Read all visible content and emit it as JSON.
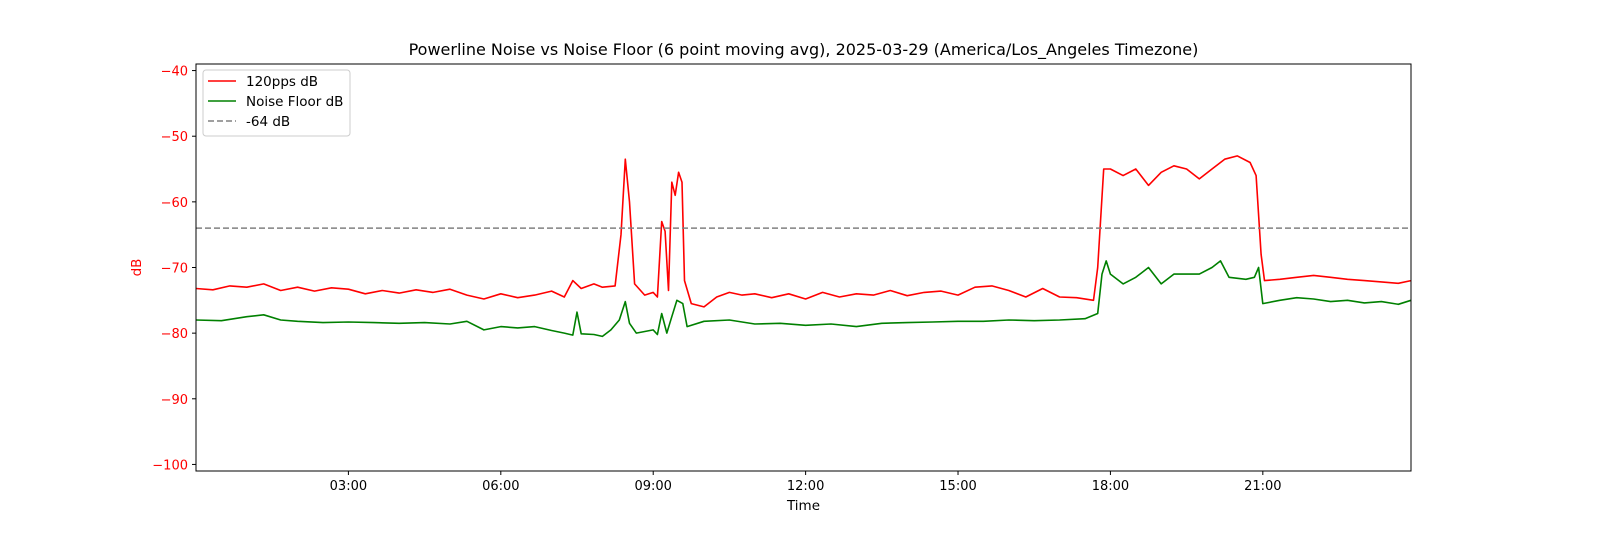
{
  "chart_data": {
    "type": "line",
    "title": "Powerline Noise vs Noise Floor (6 point moving avg), 2025-03-29 (America/Los_Angeles Timezone)",
    "xlabel": "Time",
    "ylabel": "dB",
    "xlim": [
      "00:00",
      "23:55"
    ],
    "ylim": [
      -101,
      -39
    ],
    "x_ticks": [
      "03:00",
      "06:00",
      "09:00",
      "12:00",
      "15:00",
      "18:00",
      "21:00"
    ],
    "y_ticks": [
      -40,
      -50,
      -60,
      -70,
      -80,
      -90,
      -100
    ],
    "grid": false,
    "legend_position": "top-left",
    "ylabel_color": "#ff0000",
    "ytick_color": "#ff0000",
    "series": [
      {
        "name": "120pps dB",
        "color": "#ff0000",
        "style": "solid",
        "points": [
          [
            "00:00",
            -73.2
          ],
          [
            "00:20",
            -73.4
          ],
          [
            "00:40",
            -72.8
          ],
          [
            "01:00",
            -73.0
          ],
          [
            "01:20",
            -72.5
          ],
          [
            "01:40",
            -73.5
          ],
          [
            "02:00",
            -73.0
          ],
          [
            "02:20",
            -73.6
          ],
          [
            "02:40",
            -73.1
          ],
          [
            "03:00",
            -73.3
          ],
          [
            "03:20",
            -74.0
          ],
          [
            "03:40",
            -73.5
          ],
          [
            "04:00",
            -73.9
          ],
          [
            "04:20",
            -73.4
          ],
          [
            "04:40",
            -73.8
          ],
          [
            "05:00",
            -73.3
          ],
          [
            "05:20",
            -74.2
          ],
          [
            "05:40",
            -74.8
          ],
          [
            "06:00",
            -74.0
          ],
          [
            "06:20",
            -74.6
          ],
          [
            "06:40",
            -74.2
          ],
          [
            "07:00",
            -73.6
          ],
          [
            "07:15",
            -74.5
          ],
          [
            "07:25",
            -72.0
          ],
          [
            "07:35",
            -73.2
          ],
          [
            "07:50",
            -72.5
          ],
          [
            "08:00",
            -73.0
          ],
          [
            "08:15",
            -72.8
          ],
          [
            "08:22",
            -65.0
          ],
          [
            "08:27",
            -53.5
          ],
          [
            "08:32",
            -60.0
          ],
          [
            "08:38",
            -72.5
          ],
          [
            "08:50",
            -74.2
          ],
          [
            "09:00",
            -73.8
          ],
          [
            "09:05",
            -74.5
          ],
          [
            "09:10",
            -63.0
          ],
          [
            "09:14",
            -64.5
          ],
          [
            "09:18",
            -73.5
          ],
          [
            "09:22",
            -57.0
          ],
          [
            "09:26",
            -59.0
          ],
          [
            "09:30",
            -55.5
          ],
          [
            "09:34",
            -57.0
          ],
          [
            "09:37",
            -72.0
          ],
          [
            "09:45",
            -75.5
          ],
          [
            "10:00",
            -76.0
          ],
          [
            "10:15",
            -74.5
          ],
          [
            "10:30",
            -73.8
          ],
          [
            "10:45",
            -74.2
          ],
          [
            "11:00",
            -74.0
          ],
          [
            "11:20",
            -74.6
          ],
          [
            "11:40",
            -74.0
          ],
          [
            "12:00",
            -74.8
          ],
          [
            "12:20",
            -73.8
          ],
          [
            "12:40",
            -74.5
          ],
          [
            "13:00",
            -74.0
          ],
          [
            "13:20",
            -74.2
          ],
          [
            "13:40",
            -73.5
          ],
          [
            "14:00",
            -74.3
          ],
          [
            "14:20",
            -73.8
          ],
          [
            "14:40",
            -73.6
          ],
          [
            "15:00",
            -74.2
          ],
          [
            "15:20",
            -73.0
          ],
          [
            "15:40",
            -72.8
          ],
          [
            "16:00",
            -73.5
          ],
          [
            "16:20",
            -74.5
          ],
          [
            "16:40",
            -73.2
          ],
          [
            "17:00",
            -74.5
          ],
          [
            "17:20",
            -74.6
          ],
          [
            "17:40",
            -75.0
          ],
          [
            "17:45",
            -70.0
          ],
          [
            "17:52",
            -55.0
          ],
          [
            "18:00",
            -55.0
          ],
          [
            "18:15",
            -56.0
          ],
          [
            "18:30",
            -55.0
          ],
          [
            "18:45",
            -57.5
          ],
          [
            "19:00",
            -55.5
          ],
          [
            "19:15",
            -54.5
          ],
          [
            "19:30",
            -55.0
          ],
          [
            "19:45",
            -56.5
          ],
          [
            "20:00",
            -55.0
          ],
          [
            "20:15",
            -53.5
          ],
          [
            "20:30",
            -53.0
          ],
          [
            "20:45",
            -54.0
          ],
          [
            "20:52",
            -56.0
          ],
          [
            "20:58",
            -68.0
          ],
          [
            "21:02",
            -72.0
          ],
          [
            "21:20",
            -71.8
          ],
          [
            "21:40",
            -71.5
          ],
          [
            "22:00",
            -71.2
          ],
          [
            "22:20",
            -71.5
          ],
          [
            "22:40",
            -71.8
          ],
          [
            "23:00",
            -72.0
          ],
          [
            "23:20",
            -72.2
          ],
          [
            "23:40",
            -72.4
          ],
          [
            "23:55",
            -72.0
          ]
        ]
      },
      {
        "name": "Noise Floor dB",
        "color": "#008000",
        "style": "solid",
        "points": [
          [
            "00:00",
            -78.0
          ],
          [
            "00:30",
            -78.1
          ],
          [
            "01:00",
            -77.5
          ],
          [
            "01:20",
            -77.2
          ],
          [
            "01:40",
            -78.0
          ],
          [
            "02:00",
            -78.2
          ],
          [
            "02:30",
            -78.4
          ],
          [
            "03:00",
            -78.3
          ],
          [
            "03:30",
            -78.4
          ],
          [
            "04:00",
            -78.5
          ],
          [
            "04:30",
            -78.4
          ],
          [
            "05:00",
            -78.6
          ],
          [
            "05:20",
            -78.2
          ],
          [
            "05:40",
            -79.5
          ],
          [
            "06:00",
            -79.0
          ],
          [
            "06:20",
            -79.2
          ],
          [
            "06:40",
            -79.0
          ],
          [
            "07:00",
            -79.6
          ],
          [
            "07:15",
            -80.0
          ],
          [
            "07:25",
            -80.3
          ],
          [
            "07:30",
            -76.8
          ],
          [
            "07:35",
            -80.1
          ],
          [
            "07:50",
            -80.2
          ],
          [
            "08:00",
            -80.5
          ],
          [
            "08:10",
            -79.5
          ],
          [
            "08:20",
            -78.0
          ],
          [
            "08:27",
            -75.2
          ],
          [
            "08:32",
            -78.5
          ],
          [
            "08:40",
            -80.0
          ],
          [
            "09:00",
            -79.5
          ],
          [
            "09:05",
            -80.2
          ],
          [
            "09:10",
            -77.0
          ],
          [
            "09:16",
            -80.0
          ],
          [
            "09:22",
            -77.5
          ],
          [
            "09:28",
            -75.0
          ],
          [
            "09:35",
            -75.5
          ],
          [
            "09:40",
            -79.0
          ],
          [
            "10:00",
            -78.2
          ],
          [
            "10:30",
            -78.0
          ],
          [
            "11:00",
            -78.6
          ],
          [
            "11:30",
            -78.5
          ],
          [
            "12:00",
            -78.8
          ],
          [
            "12:30",
            -78.6
          ],
          [
            "13:00",
            -79.0
          ],
          [
            "13:30",
            -78.5
          ],
          [
            "14:00",
            -78.4
          ],
          [
            "14:30",
            -78.3
          ],
          [
            "15:00",
            -78.2
          ],
          [
            "15:30",
            -78.2
          ],
          [
            "16:00",
            -78.0
          ],
          [
            "16:30",
            -78.1
          ],
          [
            "17:00",
            -78.0
          ],
          [
            "17:30",
            -77.8
          ],
          [
            "17:45",
            -77.0
          ],
          [
            "17:50",
            -71.0
          ],
          [
            "17:55",
            -69.0
          ],
          [
            "18:00",
            -71.0
          ],
          [
            "18:15",
            -72.5
          ],
          [
            "18:30",
            -71.5
          ],
          [
            "18:45",
            -70.0
          ],
          [
            "19:00",
            -72.5
          ],
          [
            "19:15",
            -71.0
          ],
          [
            "19:30",
            -71.0
          ],
          [
            "19:45",
            -71.0
          ],
          [
            "20:00",
            -70.0
          ],
          [
            "20:10",
            -69.0
          ],
          [
            "20:20",
            -71.5
          ],
          [
            "20:40",
            -71.8
          ],
          [
            "20:50",
            -71.5
          ],
          [
            "20:55",
            -70.0
          ],
          [
            "21:00",
            -75.5
          ],
          [
            "21:20",
            -75.0
          ],
          [
            "21:40",
            -74.6
          ],
          [
            "22:00",
            -74.8
          ],
          [
            "22:20",
            -75.2
          ],
          [
            "22:40",
            -75.0
          ],
          [
            "23:00",
            -75.4
          ],
          [
            "23:20",
            -75.2
          ],
          [
            "23:40",
            -75.6
          ],
          [
            "23:55",
            -75.0
          ]
        ]
      },
      {
        "name": "-64 dB",
        "color": "#808080",
        "style": "dashed",
        "points": [
          [
            "00:00",
            -64
          ],
          [
            "23:55",
            -64
          ]
        ]
      }
    ]
  }
}
